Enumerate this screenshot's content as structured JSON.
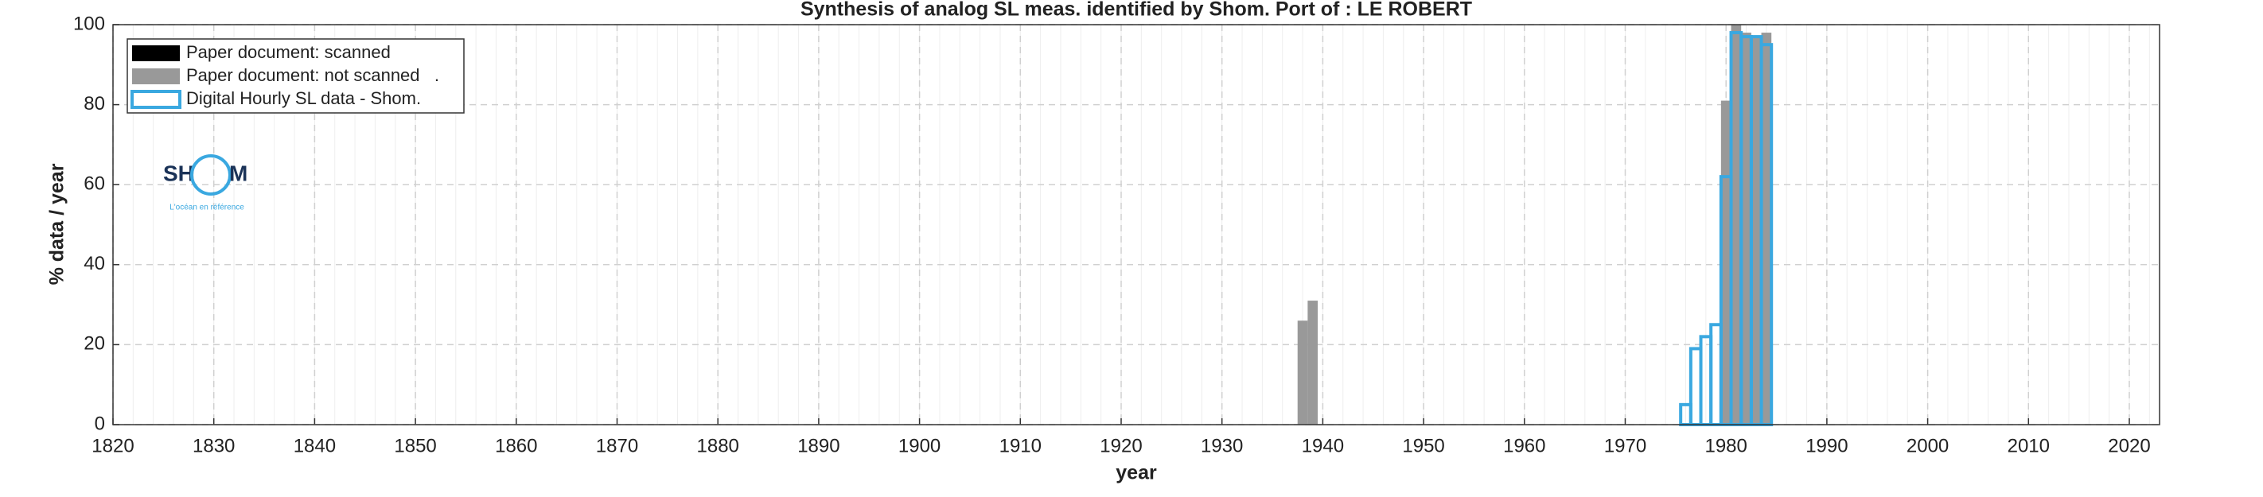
{
  "chart_data": {
    "type": "bar",
    "title": "Synthesis of analog SL meas. identified by Shom. Port of : LE ROBERT",
    "x_label": "year",
    "y_label": "% data / year",
    "x": [
      1938,
      1939,
      1976,
      1977,
      1978,
      1979,
      1980,
      1981,
      1982,
      1983,
      1984
    ],
    "series": [
      {
        "name": "Paper document: scanned",
        "color": "#000000",
        "style": "filled",
        "values": [
          0,
          0,
          0,
          0,
          0,
          0,
          0,
          0,
          0,
          0,
          0
        ]
      },
      {
        "name": "Paper document: not scanned   .",
        "color": "#999999",
        "style": "filled",
        "values": [
          26,
          31,
          0,
          0,
          0,
          0,
          81,
          100,
          98,
          97,
          98
        ]
      },
      {
        "name": "Digital Hourly SL data - Shom.",
        "color": "#3aa8e0",
        "style": "outline",
        "values": [
          0,
          0,
          5,
          19,
          22,
          25,
          62,
          98,
          97,
          97,
          95
        ]
      }
    ],
    "xlim": [
      1820,
      2023
    ],
    "ylim": [
      0,
      100
    ],
    "xticks": [
      1820,
      1830,
      1840,
      1850,
      1860,
      1870,
      1880,
      1890,
      1900,
      1910,
      1920,
      1930,
      1940,
      1950,
      1960,
      1970,
      1980,
      1990,
      2000,
      2010,
      2020
    ],
    "yticks": [
      0,
      20,
      40,
      60,
      80,
      100
    ],
    "grid": true,
    "legend": "upper left",
    "logo": {
      "left": "SH",
      "right": "M",
      "tagline": "L'océan en référence"
    }
  }
}
